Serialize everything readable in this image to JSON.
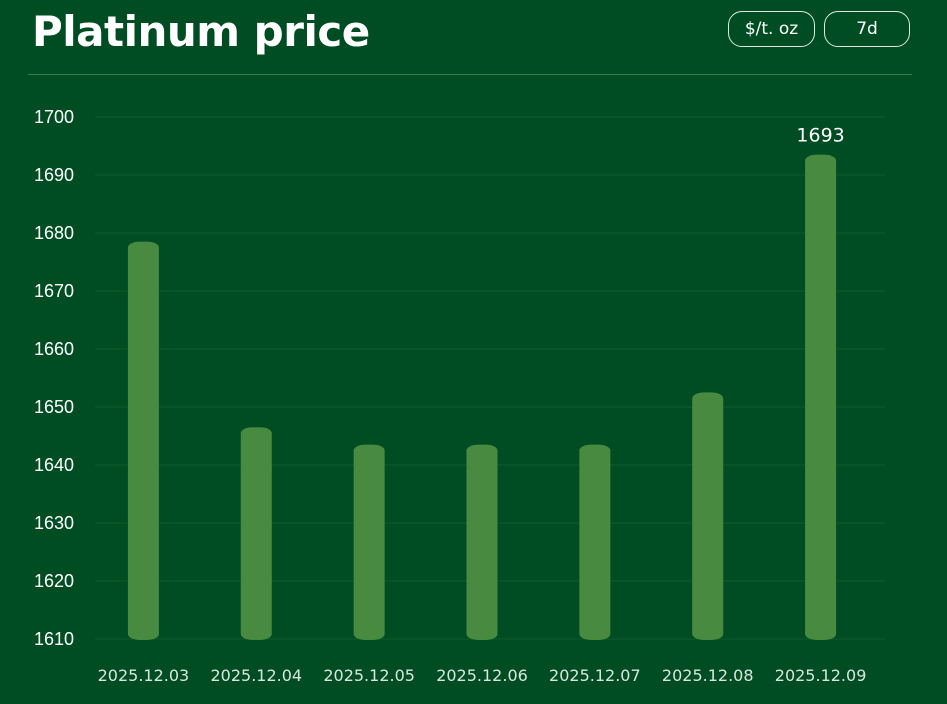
{
  "header": {
    "title": "Platinum price",
    "unit_label": "$/t. oz",
    "range_label": "7d"
  },
  "colors": {
    "background": "#014d23",
    "bar": "#478a40",
    "grid": "#0f5a2c"
  },
  "chart_data": {
    "type": "bar",
    "title": "Platinum price",
    "xlabel": "",
    "ylabel": "",
    "categories": [
      "2025.12.03",
      "2025.12.04",
      "2025.12.05",
      "2025.12.06",
      "2025.12.07",
      "2025.12.08",
      "2025.12.09"
    ],
    "values": [
      1678,
      1646,
      1643,
      1643,
      1643,
      1652,
      1693
    ],
    "ylim": [
      1610,
      1700
    ],
    "yticks": [
      1610,
      1620,
      1630,
      1640,
      1650,
      1660,
      1670,
      1680,
      1690,
      1700
    ],
    "grid": true,
    "data_labels": [
      {
        "category": "2025.12.09",
        "value": "1693"
      }
    ]
  }
}
